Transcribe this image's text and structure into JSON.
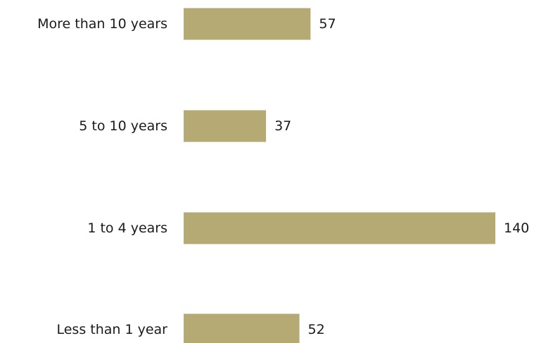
{
  "chart_data": {
    "type": "bar",
    "orientation": "horizontal",
    "categories": [
      "More than 10 years",
      "5 to 10 years",
      "1 to 4 years",
      "Less than 1 year"
    ],
    "values": [
      57,
      37,
      140,
      52
    ],
    "bar_color": "#b5a974",
    "title": "",
    "xlabel": "",
    "ylabel": "",
    "grid": false,
    "data_labels": true
  }
}
